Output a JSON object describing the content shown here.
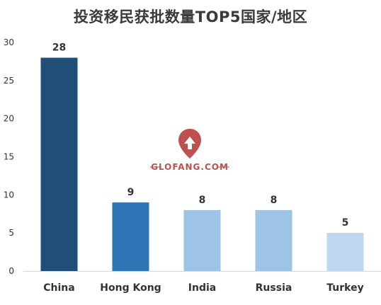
{
  "chart_data": {
    "type": "bar",
    "title": "投资移民获批数量TOP5国家/地区",
    "categories": [
      "China",
      "Hong Kong",
      "India",
      "Russia",
      "Turkey"
    ],
    "values": [
      28,
      9,
      8,
      8,
      5
    ],
    "ylim": [
      0,
      30
    ],
    "yticks": [
      0,
      5,
      10,
      15,
      20,
      25,
      30
    ],
    "grid": false,
    "bar_colors": [
      "#1f4e79",
      "#2e75b6",
      "#9dc3e6",
      "#9dc3e6",
      "#bdd7ee"
    ]
  },
  "watermark": {
    "text": "GLOFANG.COM",
    "color": "#c0504d"
  }
}
